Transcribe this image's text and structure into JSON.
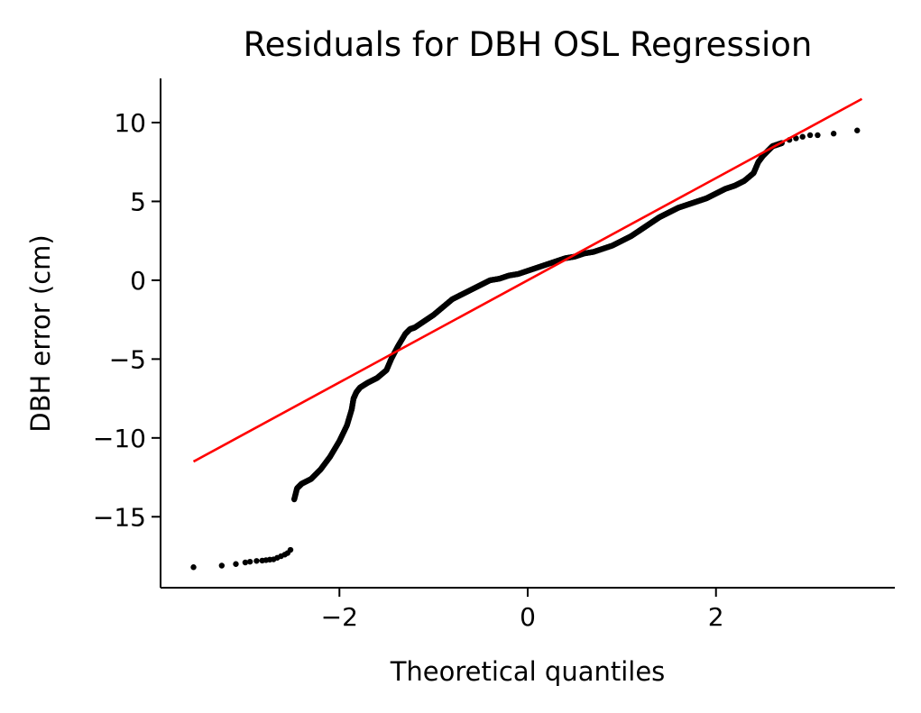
{
  "chart_data": {
    "type": "scatter",
    "title": "Residuals for DBH OSL Regression",
    "xlabel": "Theoretical quantiles",
    "ylabel": "DBH error (cm)",
    "xlim": [
      -3.9,
      3.9
    ],
    "ylim": [
      -19.5,
      12.8
    ],
    "xticks": [
      -2,
      0,
      2
    ],
    "xtick_labels": [
      "−2",
      "0",
      "2"
    ],
    "yticks": [
      10,
      5,
      0,
      -5,
      -10,
      -15
    ],
    "ytick_labels": [
      "10",
      "5",
      "0",
      "−5",
      "−10",
      "−15"
    ],
    "grid": false,
    "colors": {
      "points": "#000000",
      "reference_line": "#ff0000",
      "axes": "#000000"
    },
    "reference_line": {
      "x": [
        -3.55,
        3.55
      ],
      "y": [
        -11.5,
        11.5
      ]
    },
    "points_quantile_curve": {
      "x": [
        -2.48,
        -2.45,
        -2.4,
        -2.3,
        -2.2,
        -2.1,
        -2.0,
        -1.92,
        -1.87,
        -1.85,
        -1.82,
        -1.78,
        -1.7,
        -1.6,
        -1.5,
        -1.45,
        -1.38,
        -1.3,
        -1.25,
        -1.2,
        -1.1,
        -1.0,
        -0.9,
        -0.8,
        -0.7,
        -0.6,
        -0.5,
        -0.4,
        -0.3,
        -0.2,
        -0.1,
        0.0,
        0.1,
        0.2,
        0.3,
        0.4,
        0.5,
        0.6,
        0.7,
        0.8,
        0.9,
        1.0,
        1.1,
        1.2,
        1.3,
        1.4,
        1.5,
        1.6,
        1.7,
        1.8,
        1.9,
        2.0,
        2.1,
        2.2,
        2.3,
        2.4,
        2.45,
        2.5,
        2.55,
        2.6,
        2.65,
        2.7
      ],
      "y": [
        -13.9,
        -13.2,
        -12.9,
        -12.6,
        -12.0,
        -11.2,
        -10.2,
        -9.2,
        -8.2,
        -7.5,
        -7.1,
        -6.8,
        -6.5,
        -6.2,
        -5.7,
        -5.0,
        -4.2,
        -3.4,
        -3.1,
        -3.0,
        -2.6,
        -2.2,
        -1.7,
        -1.2,
        -0.9,
        -0.6,
        -0.3,
        0.0,
        0.1,
        0.3,
        0.4,
        0.6,
        0.8,
        1.0,
        1.2,
        1.4,
        1.5,
        1.7,
        1.8,
        2.0,
        2.2,
        2.5,
        2.8,
        3.2,
        3.6,
        4.0,
        4.3,
        4.6,
        4.8,
        5.0,
        5.2,
        5.5,
        5.8,
        6.0,
        6.3,
        6.8,
        7.5,
        7.9,
        8.2,
        8.5,
        8.6,
        8.7
      ]
    },
    "points_discrete": {
      "x": [
        -3.55,
        -3.25,
        -3.1,
        -3.0,
        -2.95,
        -2.88,
        -2.82,
        -2.78,
        -2.74,
        -2.7,
        -2.66,
        -2.62,
        -2.58,
        -2.55,
        -2.52,
        2.78,
        2.85,
        2.92,
        3.0,
        3.08,
        3.25,
        3.5
      ],
      "y": [
        -18.2,
        -18.1,
        -18.0,
        -17.9,
        -17.85,
        -17.8,
        -17.78,
        -17.75,
        -17.72,
        -17.7,
        -17.6,
        -17.5,
        -17.4,
        -17.3,
        -17.1,
        8.9,
        9.0,
        9.1,
        9.2,
        9.2,
        9.3,
        9.5
      ]
    }
  }
}
